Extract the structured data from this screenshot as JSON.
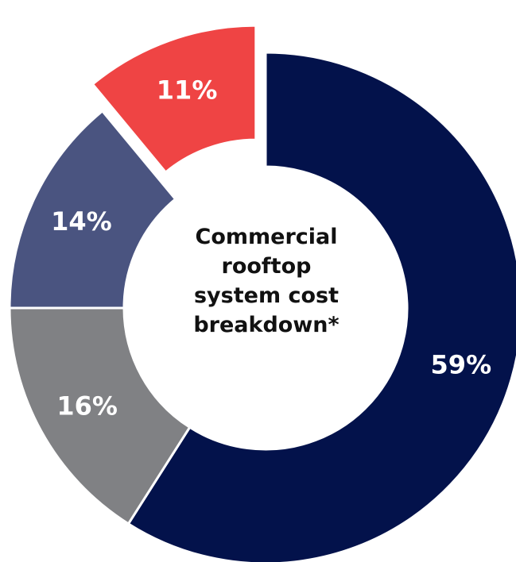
{
  "chart_data": {
    "type": "pie",
    "variant": "donut",
    "title_lines": [
      "Commercial",
      "rooftop",
      "system cost",
      "breakdown*"
    ],
    "slices": [
      {
        "label": "59%",
        "value": 59,
        "color": "#03124b"
      },
      {
        "label": "16%",
        "value": 16,
        "color": "#808184"
      },
      {
        "label": "14%",
        "value": 14,
        "color": "#4a5480"
      },
      {
        "label": "11%",
        "value": 11,
        "color": "#ef4444",
        "exploded": true
      }
    ],
    "legend": "none"
  }
}
